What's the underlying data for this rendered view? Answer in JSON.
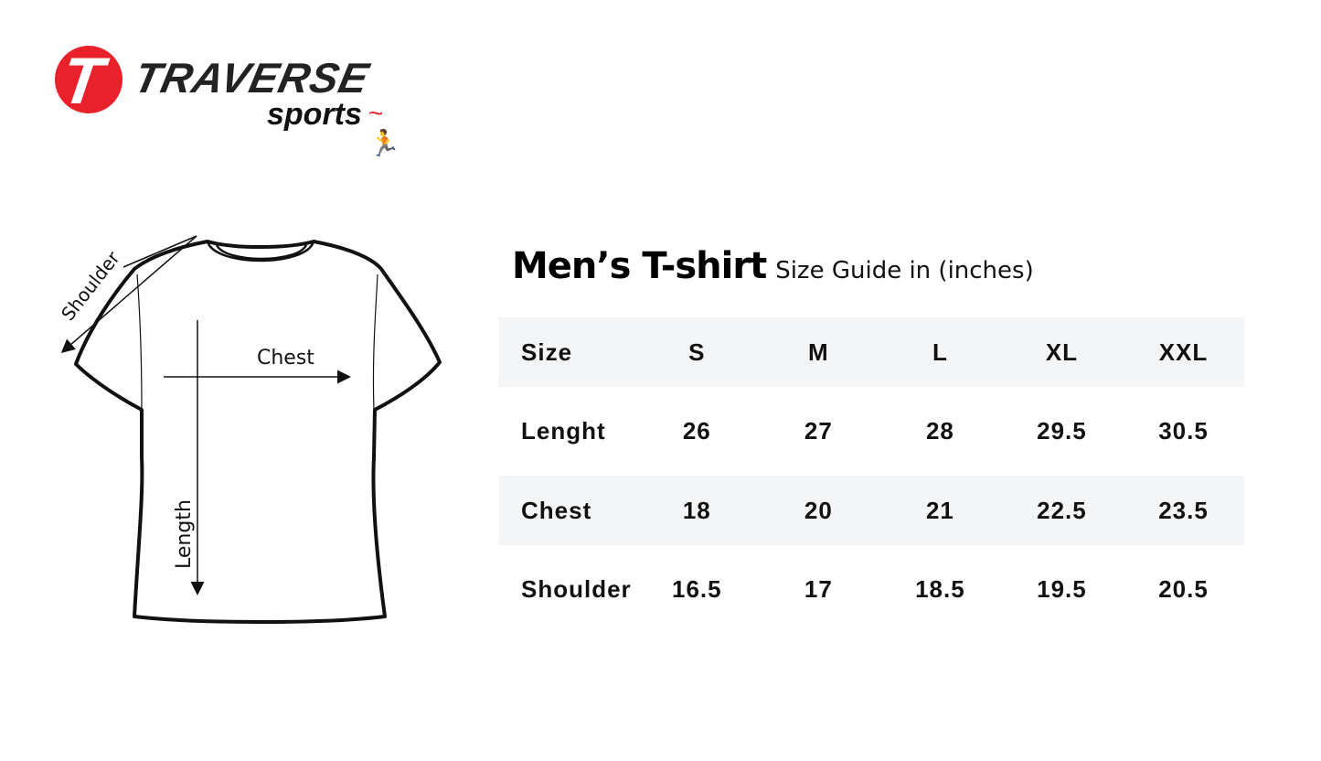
{
  "logo": {
    "mark": "T",
    "brand": "TRAVERSE",
    "sub": "sports",
    "colors": {
      "red": "#e8212a",
      "dark": "#222222"
    }
  },
  "diagram": {
    "shoulder_label": "Shoulder",
    "chest_label": "Chest",
    "length_label": "Length"
  },
  "title": {
    "main": "Men’s T-shirt",
    "sub": "Size Guide in (inches)"
  },
  "table": {
    "header": [
      "Size",
      "S",
      "M",
      "L",
      "XL",
      "XXL"
    ],
    "rows": [
      [
        "Lenght",
        "26",
        "27",
        "28",
        "29.5",
        "30.5"
      ],
      [
        "Chest",
        "18",
        "20",
        "21",
        "22.5",
        "23.5"
      ],
      [
        "Shoulder",
        "16.5",
        "17",
        "18.5",
        "19.5",
        "20.5"
      ]
    ],
    "band_color": "#f4f5f7"
  }
}
